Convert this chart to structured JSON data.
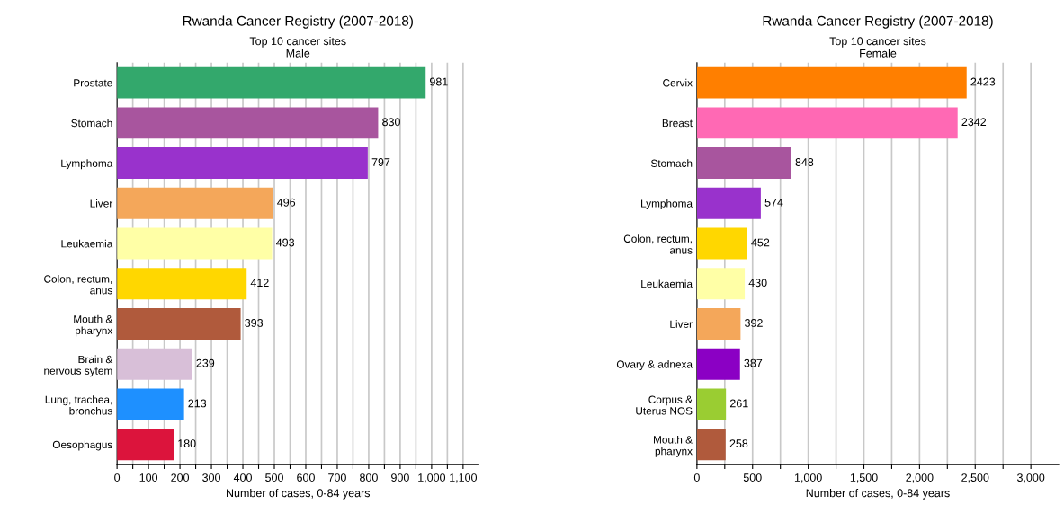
{
  "chart_data": [
    {
      "type": "bar",
      "orientation": "horizontal",
      "title": "Rwanda Cancer Registry (2007-2018)",
      "subtitle": "Top 10 cancer sites\nMale",
      "xlabel": "Number of cases, 0-84 years",
      "categories": [
        "Prostate",
        "Stomach",
        "Lymphoma",
        "Liver",
        "Leukaemia",
        "Colon, rectum,\nanus",
        "Mouth &\npharynx",
        "Brain &\nnervous sytem",
        "Lung, trachea,\nbronchus",
        "Oesophagus"
      ],
      "values": [
        981,
        830,
        797,
        496,
        493,
        412,
        393,
        239,
        213,
        180
      ],
      "colors": [
        "#33a86c",
        "#a8559e",
        "#9932cc",
        "#f4a75a",
        "#ffffa6",
        "#ffd700",
        "#b05a3c",
        "#d8bfd8",
        "#1e90ff",
        "#dc143c"
      ],
      "data_labels": true,
      "grid": "x",
      "xlim": [
        0,
        1150
      ],
      "xticks": [
        0,
        {
          "value": 50,
          "label": null
        },
        100,
        {
          "value": 150,
          "label": null
        },
        200,
        {
          "value": 250,
          "label": null
        },
        300,
        {
          "value": 350,
          "label": null
        },
        400,
        {
          "value": 450,
          "label": null
        },
        500,
        {
          "value": 550,
          "label": null
        },
        600,
        {
          "value": 650,
          "label": null
        },
        700,
        {
          "value": 750,
          "label": null
        },
        800,
        {
          "value": 850,
          "label": null
        },
        900,
        {
          "value": 950,
          "label": null
        },
        {
          "value": 1000,
          "label": "1,000"
        },
        {
          "value": 1050,
          "label": null
        },
        {
          "value": 1100,
          "label": "1,100"
        }
      ]
    },
    {
      "type": "bar",
      "orientation": "horizontal",
      "title": "Rwanda Cancer Registry (2007-2018)",
      "subtitle": "Top 10 cancer sites\nFemale",
      "xlabel": "Number of cases, 0-84 years",
      "categories": [
        "Cervix",
        "Breast",
        "Stomach",
        "Lymphoma",
        "Colon, rectum,\nanus",
        "Leukaemia",
        "Liver",
        "Ovary & adnexa",
        "Corpus &\nUterus NOS",
        "Mouth &\npharynx"
      ],
      "values": [
        2423,
        2342,
        848,
        574,
        452,
        430,
        392,
        387,
        261,
        258
      ],
      "colors": [
        "#ff7f00",
        "#ff69b4",
        "#a8559e",
        "#9932cc",
        "#ffd700",
        "#ffffa6",
        "#f4a75a",
        "#8b00c4",
        "#9acd32",
        "#b05a3c"
      ],
      "data_labels": true,
      "grid": "x",
      "xlim": [
        0,
        3250
      ],
      "xticks": [
        0,
        {
          "value": 250,
          "label": null
        },
        500,
        {
          "value": 750,
          "label": null
        },
        {
          "value": 1000,
          "label": "1,000"
        },
        {
          "value": 1250,
          "label": null
        },
        {
          "value": 1500,
          "label": "1,500"
        },
        {
          "value": 1750,
          "label": null
        },
        {
          "value": 2000,
          "label": "2,000"
        },
        {
          "value": 2250,
          "label": null
        },
        {
          "value": 2500,
          "label": "2,500"
        },
        {
          "value": 2750,
          "label": null
        },
        {
          "value": 3000,
          "label": "3,000"
        }
      ]
    }
  ]
}
